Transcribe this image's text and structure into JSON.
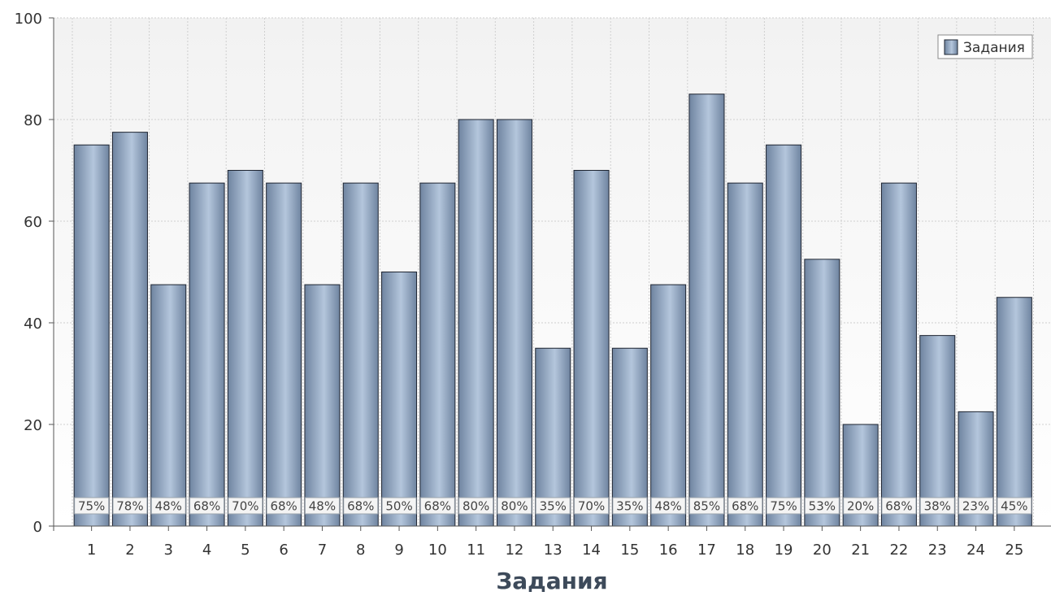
{
  "chart_data": {
    "type": "bar",
    "xlabel": "Задания",
    "ylabel": "",
    "ylim": [
      0,
      100
    ],
    "yticks": [
      0,
      20,
      40,
      60,
      80,
      100
    ],
    "grid": true,
    "legend_position": "top-right",
    "categories": [
      "1",
      "2",
      "3",
      "4",
      "5",
      "6",
      "7",
      "8",
      "9",
      "10",
      "11",
      "12",
      "13",
      "14",
      "15",
      "16",
      "17",
      "18",
      "19",
      "20",
      "21",
      "22",
      "23",
      "24",
      "25"
    ],
    "series": [
      {
        "name": "Задания",
        "values": [
          75,
          77.5,
          47.5,
          67.5,
          70,
          67.5,
          47.5,
          67.5,
          50,
          67.5,
          80,
          80,
          35,
          70,
          35,
          47.5,
          85,
          67.5,
          75,
          52.5,
          20,
          67.5,
          37.5,
          22.5,
          45
        ],
        "labels": [
          "75%",
          "78%",
          "48%",
          "68%",
          "70%",
          "68%",
          "48%",
          "68%",
          "50%",
          "68%",
          "80%",
          "80%",
          "35%",
          "70%",
          "35%",
          "48%",
          "85%",
          "68%",
          "75%",
          "53%",
          "20%",
          "68%",
          "38%",
          "23%",
          "45%"
        ]
      }
    ],
    "colors": {
      "bar_light": "#b4c6dc",
      "bar_dark": "#6f84a0",
      "bar_stroke": "#1e2430",
      "grid": "#cfcfcf",
      "axis": "#555555"
    }
  }
}
